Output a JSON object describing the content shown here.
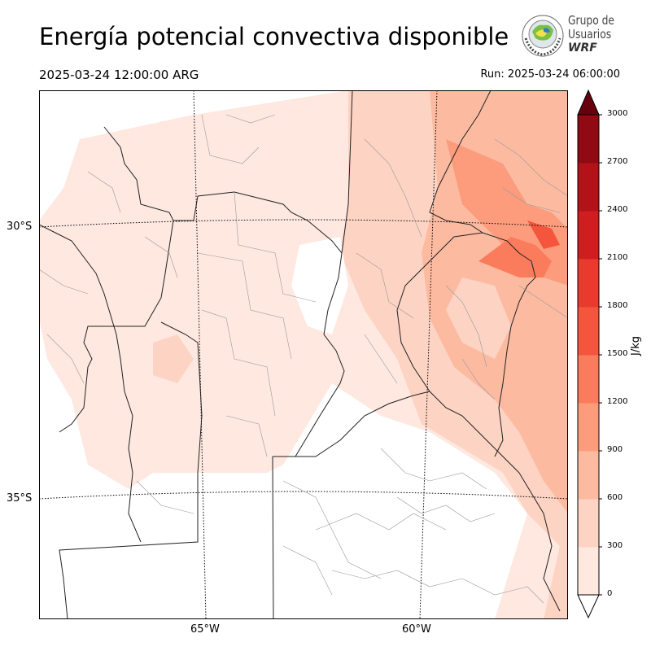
{
  "header": {
    "title": "Energía potencial convectiva disponible",
    "valid_time": "2025-03-24 12:00:00 ARG",
    "run_time": "Run: 2025-03-24 06:00:00"
  },
  "logo": {
    "line1": "Grupo de",
    "line2": "Usuarios",
    "line3": "WRF"
  },
  "map": {
    "lat_labels": [
      "30°S",
      "35°S"
    ],
    "lon_labels": [
      "65°W",
      "60°W"
    ]
  },
  "colorbar": {
    "unit": "J/kg",
    "ticks": [
      "0",
      "300",
      "600",
      "900",
      "1200",
      "1500",
      "1800",
      "2100",
      "2400",
      "2700",
      "3000"
    ],
    "colors": [
      "#fee8e0",
      "#fdd3c3",
      "#fcbba1",
      "#fc9c7d",
      "#fb7c5c",
      "#f5553c",
      "#ea3a2d",
      "#d01d1f",
      "#b31218",
      "#8f0a13"
    ],
    "over_color": "#67000d",
    "under_color": "#ffffff"
  }
}
